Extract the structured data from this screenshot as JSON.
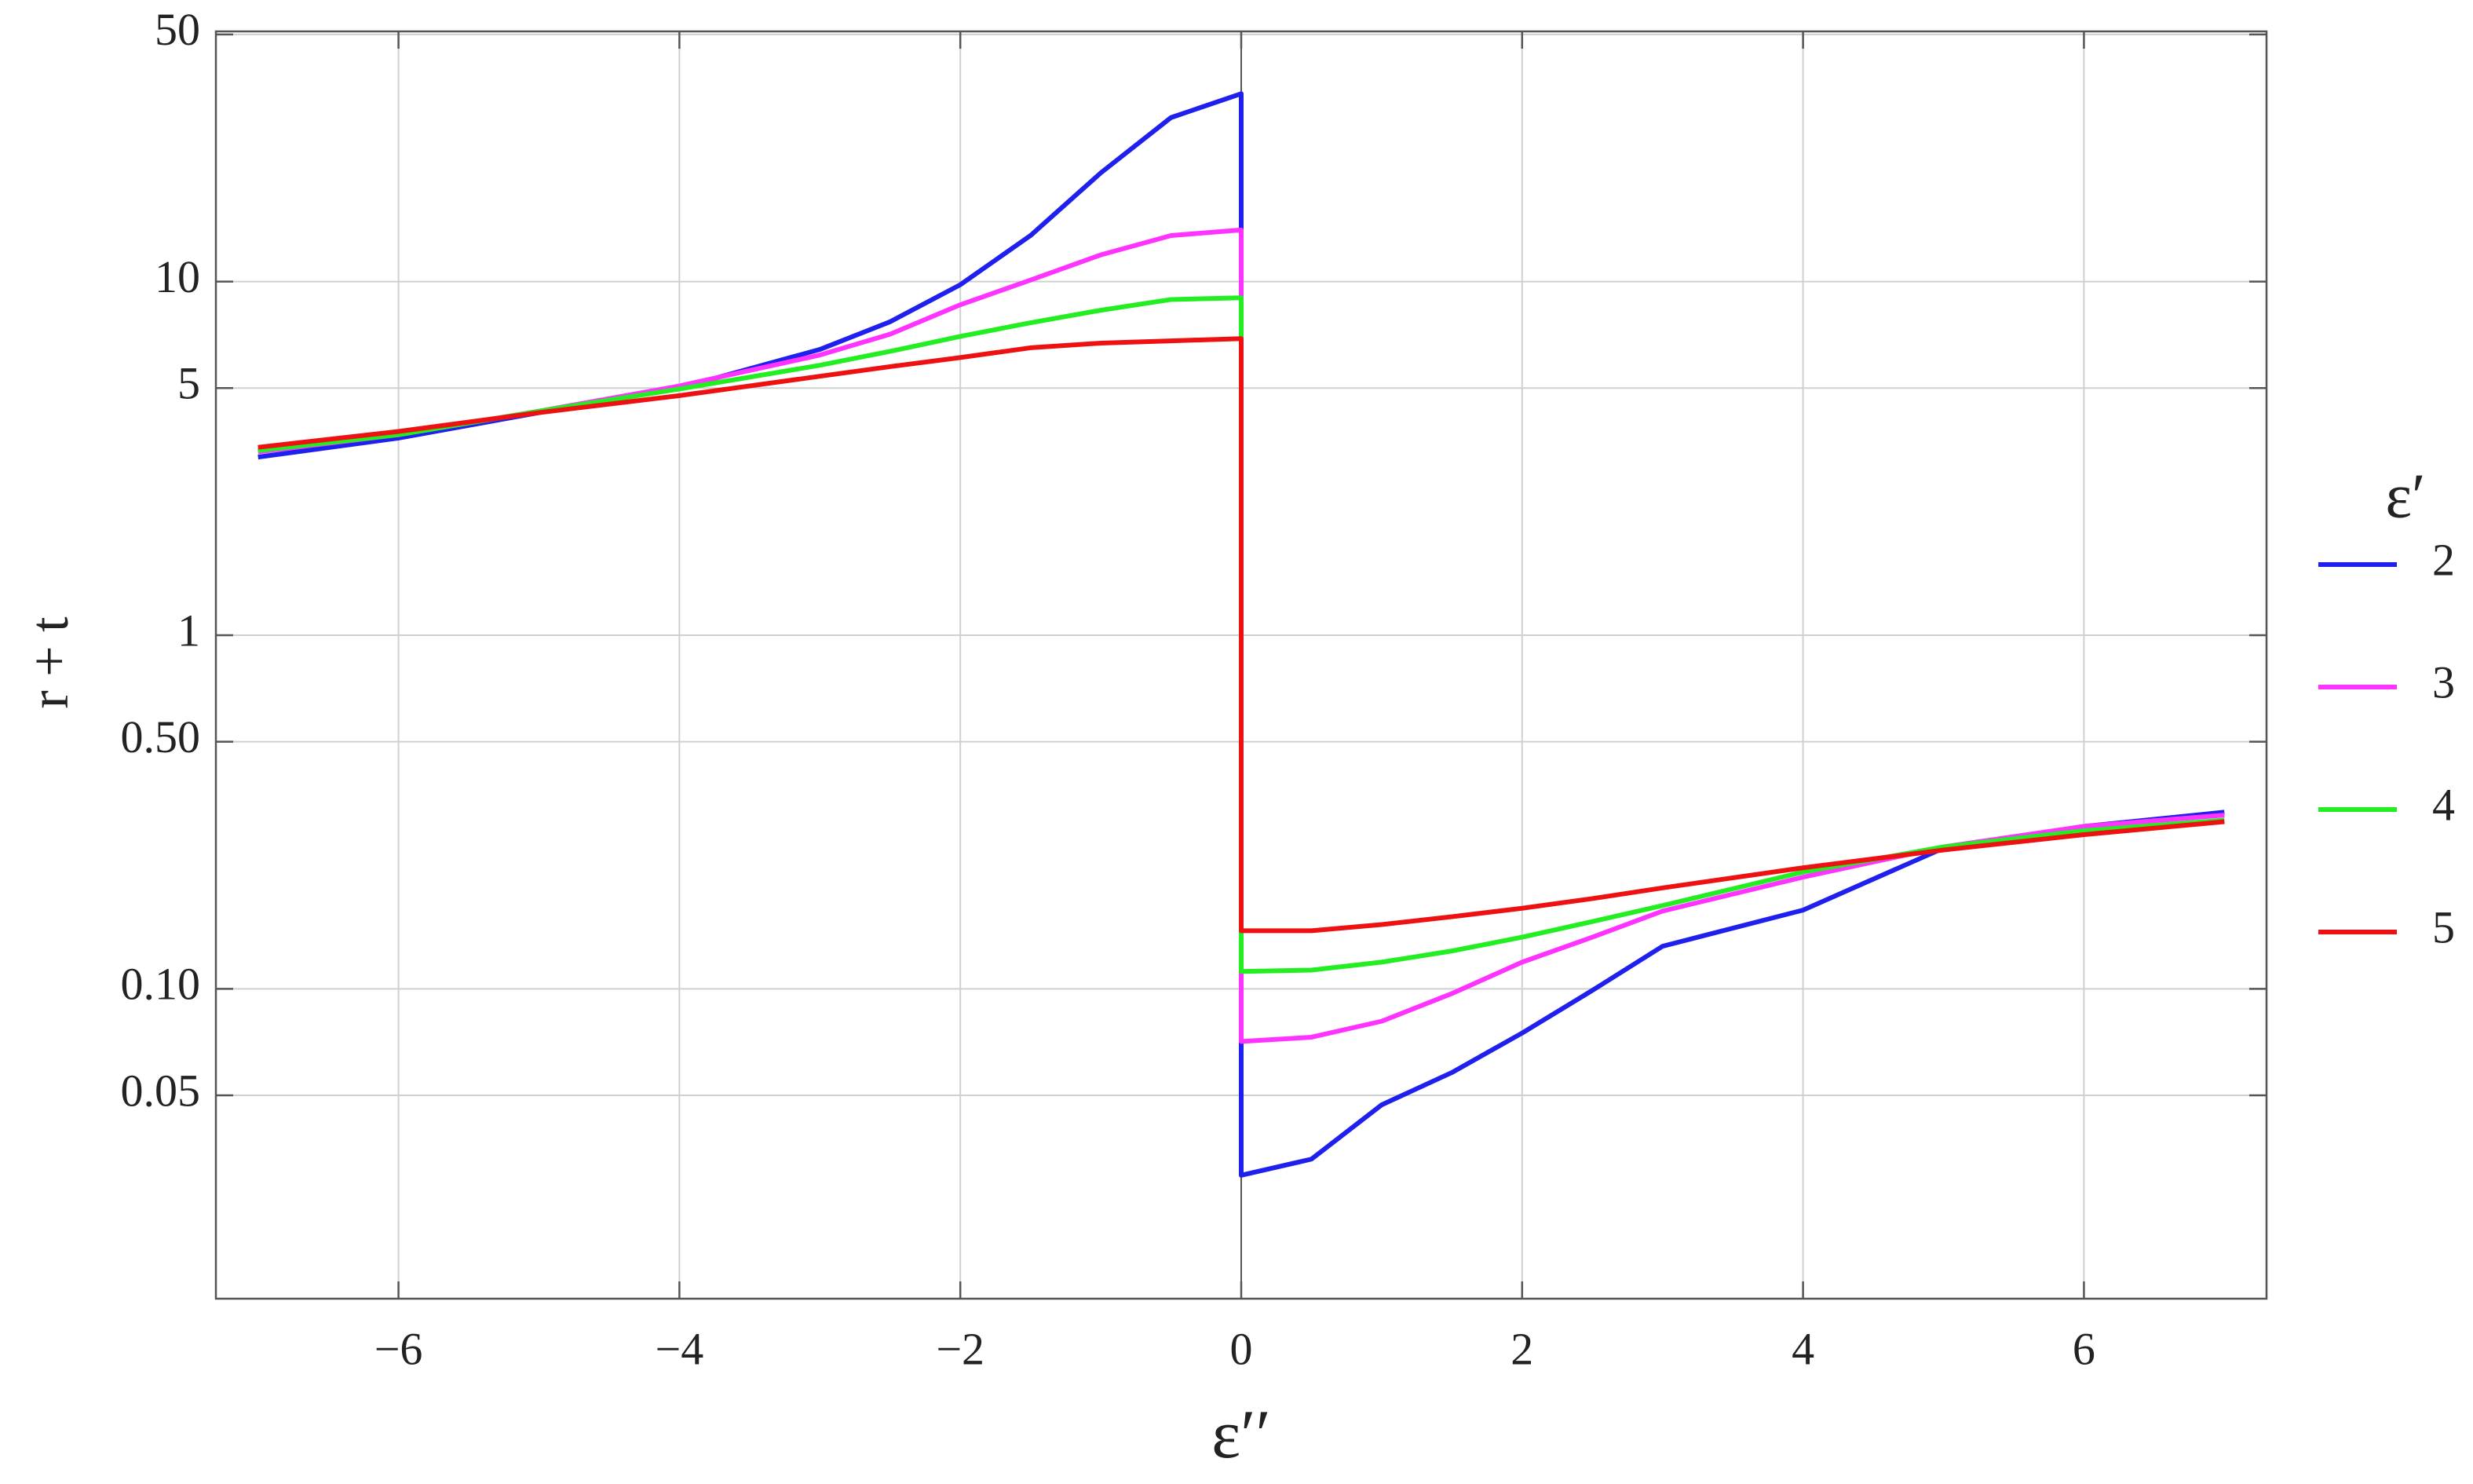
{
  "chart_data": {
    "type": "line",
    "xlabel": "ε′′",
    "ylabel": "r + t",
    "legend_title": "ε′",
    "legend": "right",
    "grid": true,
    "yscale": "log",
    "xlim": [
      -7.3,
      7.3
    ],
    "ylim": [
      0.0133,
      51
    ],
    "xticks": [
      {
        "value": -6,
        "label": "−6"
      },
      {
        "value": -4,
        "label": "−4"
      },
      {
        "value": -2,
        "label": "−2"
      },
      0,
      2,
      4,
      6
    ],
    "yticks": [
      0.05,
      {
        "value": 0.1,
        "label": "0.10"
      },
      {
        "value": 0.5,
        "label": "0.50"
      },
      1,
      5,
      10,
      50
    ],
    "x": [
      -7,
      -6,
      -5,
      -4,
      -3,
      -2.5,
      -2,
      -1.5,
      -1,
      -0.5,
      0,
      0,
      0.5,
      1,
      1.5,
      2,
      2.5,
      3,
      4,
      5,
      6,
      7
    ],
    "series": [
      {
        "name": "2",
        "color": "#1f1fee",
        "values": [
          3.19,
          3.61,
          4.26,
          5.0,
          6.43,
          7.7,
          9.8,
          13.5,
          20.3,
          29.1,
          34,
          0.0297,
          0.033,
          0.047,
          0.058,
          0.075,
          0.099,
          0.132,
          0.167,
          0.25,
          0.288,
          0.316
        ]
      },
      {
        "name": "3",
        "color": "#ff33ff",
        "values": [
          3.3,
          3.69,
          4.3,
          5.07,
          6.2,
          7.1,
          8.6,
          10.1,
          11.9,
          13.5,
          14.0,
          0.071,
          0.073,
          0.081,
          0.097,
          0.119,
          0.14,
          0.166,
          0.207,
          0.252,
          0.288,
          0.31
        ]
      },
      {
        "name": "4",
        "color": "#22ee22",
        "values": [
          3.33,
          3.69,
          4.3,
          4.97,
          5.8,
          6.35,
          7.0,
          7.65,
          8.3,
          8.9,
          9.0,
          0.112,
          0.113,
          0.119,
          0.128,
          0.14,
          0.155,
          0.172,
          0.214,
          0.252,
          0.28,
          0.3
        ]
      },
      {
        "name": "5",
        "color": "#ee1111",
        "values": [
          3.4,
          3.77,
          4.26,
          4.76,
          5.4,
          5.75,
          6.1,
          6.5,
          6.7,
          6.8,
          6.9,
          0.146,
          0.146,
          0.152,
          0.16,
          0.169,
          0.18,
          0.193,
          0.22,
          0.247,
          0.273,
          0.297
        ]
      }
    ]
  }
}
